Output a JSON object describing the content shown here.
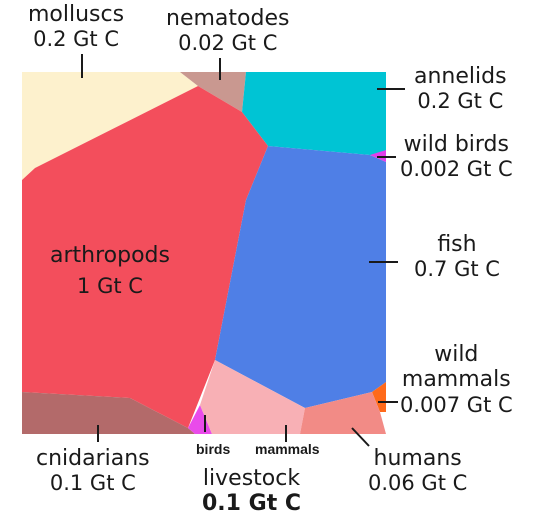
{
  "taxa": {
    "molluscs": {
      "name": "molluscs",
      "value": "0.2 Gt C",
      "gt_c": 0.2,
      "color": "#FDF1CD"
    },
    "nematodes": {
      "name": "nematodes",
      "value": "0.02 Gt C",
      "gt_c": 0.02,
      "color": "#C99890"
    },
    "annelids": {
      "name": "annelids",
      "value": "0.2 Gt C",
      "gt_c": 0.2,
      "color": "#00C4D4"
    },
    "wild_birds": {
      "name": "wild birds",
      "value": "0.002 Gt C",
      "gt_c": 0.002,
      "color": "#E23EEA"
    },
    "fish": {
      "name": "fish",
      "value": "0.7 Gt C",
      "gt_c": 0.7,
      "color": "#4F7FE6"
    },
    "arthropods": {
      "name": "arthropods",
      "value": "1 Gt C",
      "gt_c": 1,
      "color": "#F34E5C"
    },
    "wild_mammals": {
      "name_line1": "wild",
      "name_line2": "mammals",
      "value": "0.007 Gt C",
      "gt_c": 0.007,
      "color": "#FF6A1A"
    },
    "cnidarians": {
      "name": "cnidarians",
      "value": "0.1 Gt C",
      "gt_c": 0.1,
      "color": "#B36A6A"
    },
    "humans": {
      "name": "humans",
      "value": "0.06 Gt C",
      "gt_c": 0.06,
      "color": "#F28B86"
    },
    "livestock": {
      "name": "livestock",
      "value": "0.1 Gt C",
      "gt_c": 0.1,
      "birds_label": "birds",
      "mammals_label": "mammals",
      "birds_color": "#E94BEA",
      "mammals_color": "#F8B0B5"
    }
  }
}
